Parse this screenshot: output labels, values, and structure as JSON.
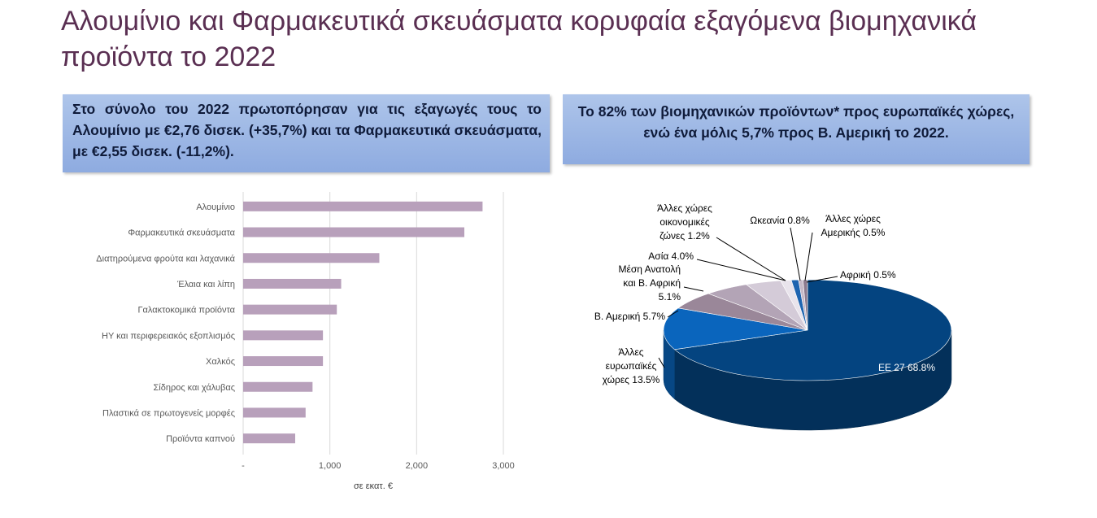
{
  "title": "Αλουμίνιο και Φαρμακευτικά σκευάσματα κορυφαία εξαγόμενα βιομηχανικά προϊόντα το 2022",
  "callouts": {
    "left": "Στο σύνολο του 2022 πρωτοπόρησαν για τις εξαγωγές τους το Αλουμίνιο με €2,76 δισεκ. (+35,7%) και τα Φαρμακευτικά σκευάσματα, με €2,55 δισεκ. (-11,2%).",
    "right": "Το 82% των βιομηχανικών προϊόντων* προς ευρωπαϊκές χώρες, ενώ ένα μόλις 5,7% προς Β. Αμερική το 2022."
  },
  "chart_data": [
    {
      "type": "bar",
      "orientation": "horizontal",
      "categories": [
        "Αλουμίνιο",
        "Φαρμακευτικά σκευάσματα",
        "Διατηρούμενα φρούτα και λαχανικά",
        "Έλαια και λίπη",
        "Γαλακτοκομικά προϊόντα",
        "ΗΥ και περιφερειακός εξοπλισμός",
        "Χαλκός",
        "Σίδηρος και χάλυβας",
        "Πλαστικά σε πρωτογενείς μορφές",
        "Προϊόντα καπνού"
      ],
      "values": [
        2760,
        2550,
        1570,
        1130,
        1080,
        920,
        920,
        800,
        720,
        600
      ],
      "xlabel": "σε εκατ. €",
      "ylabel": "",
      "xlim": [
        0,
        3000
      ],
      "xticks": [
        "-",
        "1,000",
        "2,000",
        "3,000"
      ],
      "grid": "vertical",
      "bar_color": "#b8a0bb"
    },
    {
      "type": "pie",
      "style": "3d",
      "slices": [
        {
          "label": "ΕΕ 27 68.8%",
          "value": 68.8,
          "color": "#044480"
        },
        {
          "label": "Άλλες ευρωπαϊκές χώρες 13.5%",
          "value": 13.5,
          "color": "#0a65bd"
        },
        {
          "label": "Β. Αμερική 5.7%",
          "value": 5.7,
          "color": "#9a8799"
        },
        {
          "label": "Μέση Ανατολή και Β. Αφρική 5.1%",
          "value": 5.1,
          "color": "#b3a4b6"
        },
        {
          "label": "Ασία 4.0%",
          "value": 4.0,
          "color": "#d4cbd8"
        },
        {
          "label": "Άλλες χώρες οικονομικές ζώνες 1.2%",
          "value": 1.2,
          "color": "#e9e4ec"
        },
        {
          "label": "Ωκεανία 0.8%",
          "value": 0.8,
          "color": "#1e64b0"
        },
        {
          "label": "Άλλες χώρες Αμερικής 0.5%",
          "value": 0.5,
          "color": "#c6b9c8"
        },
        {
          "label": "Αφρική 0.5%",
          "value": 0.5,
          "color": "#8c7a8e"
        }
      ]
    }
  ]
}
